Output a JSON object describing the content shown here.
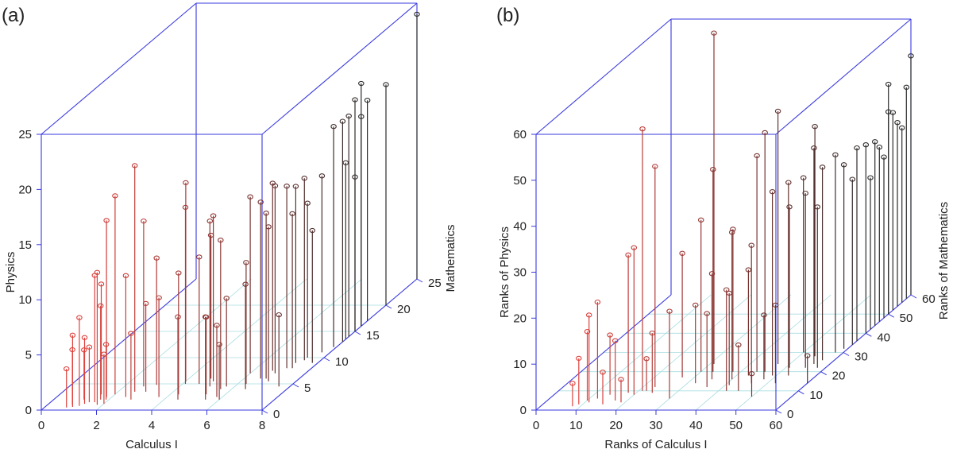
{
  "colors": {
    "box": "#3a3adf",
    "grid": "#a8dde0",
    "low": "#e0413c",
    "high": "#2b2b2b",
    "text": "#222222"
  },
  "chart_data": [
    {
      "type": "scatter",
      "panel_label": "(a)",
      "xlabel": "Calculus I",
      "ylabel": "Mathematics",
      "zlabel": "Physics",
      "xlim": [
        0,
        8
      ],
      "ylim": [
        0,
        25
      ],
      "zlim": [
        0,
        25
      ],
      "x_ticks": [
        "0",
        "2",
        "4",
        "6",
        "8"
      ],
      "y_ticks": [
        "0",
        "5",
        "10",
        "15",
        "20",
        "25"
      ],
      "z_ticks": [
        "0",
        "5",
        "10",
        "15",
        "20",
        "25"
      ],
      "points": [
        [
          0.8,
          0.5,
          3.5
        ],
        [
          0.9,
          1.0,
          5.0
        ],
        [
          1.0,
          0.6,
          6.5
        ],
        [
          1.1,
          2.0,
          4.5
        ],
        [
          1.2,
          0.8,
          8.0
        ],
        [
          1.3,
          1.2,
          6.0
        ],
        [
          1.4,
          1.5,
          5.0
        ],
        [
          1.5,
          3.0,
          10.0
        ],
        [
          1.6,
          1.5,
          11.5
        ],
        [
          1.7,
          2.0,
          8.5
        ],
        [
          1.8,
          1.0,
          12.0
        ],
        [
          1.8,
          2.5,
          16.0
        ],
        [
          1.9,
          2.0,
          5.0
        ],
        [
          2.0,
          1.2,
          4.5
        ],
        [
          2.0,
          3.0,
          18.0
        ],
        [
          2.5,
          2.5,
          11.0
        ],
        [
          2.6,
          3.5,
          20.5
        ],
        [
          2.7,
          4.5,
          15.0
        ],
        [
          2.8,
          2.0,
          6.0
        ],
        [
          3.0,
          3.5,
          8.0
        ],
        [
          3.1,
          4.8,
          11.5
        ],
        [
          3.7,
          2.5,
          9.0
        ],
        [
          4.0,
          5.5,
          18.0
        ],
        [
          4.1,
          5.0,
          16.0
        ],
        [
          4.3,
          3.0,
          11.0
        ],
        [
          4.5,
          2.0,
          7.5
        ],
        [
          4.6,
          5.0,
          11.5
        ],
        [
          4.8,
          6.0,
          13.0
        ],
        [
          5.0,
          5.5,
          15.0
        ],
        [
          5.1,
          4.5,
          15.0
        ],
        [
          5.3,
          3.0,
          7.0
        ],
        [
          5.5,
          2.0,
          7.5
        ],
        [
          5.6,
          4.0,
          13.5
        ],
        [
          5.7,
          4.5,
          8.0
        ],
        [
          5.8,
          2.5,
          6.5
        ],
        [
          6.0,
          2.0,
          5.0
        ],
        [
          6.0,
          7.0,
          16.0
        ],
        [
          6.3,
          5.0,
          11.0
        ],
        [
          6.5,
          4.0,
          9.5
        ],
        [
          6.6,
          6.0,
          16.0
        ],
        [
          6.7,
          7.5,
          17.0
        ],
        [
          6.8,
          6.0,
          15.0
        ],
        [
          6.9,
          7.0,
          17.0
        ],
        [
          7.0,
          5.5,
          14.0
        ],
        [
          7.1,
          8.0,
          16.5
        ],
        [
          7.2,
          9.0,
          16.0
        ],
        [
          7.3,
          8.0,
          14.0
        ],
        [
          7.4,
          9.5,
          16.5
        ],
        [
          7.4,
          10.0,
          14.0
        ],
        [
          7.6,
          4.5,
          6.5
        ],
        [
          7.7,
          11.0,
          16.0
        ],
        [
          7.8,
          9.0,
          12.0
        ],
        [
          7.9,
          12.0,
          20.0
        ],
        [
          8.0,
          13.0,
          20.0
        ],
        [
          8.0,
          14.0,
          20.0
        ],
        [
          8.0,
          15.0,
          21.0
        ],
        [
          8.0,
          16.0,
          22.0
        ],
        [
          8.0,
          16.0,
          19.0
        ],
        [
          8.0,
          17.0,
          20.0
        ],
        [
          8.0,
          13.5,
          16.0
        ],
        [
          8.0,
          15.0,
          14.0
        ],
        [
          8.0,
          20.0,
          20.0
        ],
        [
          8.0,
          25.0,
          24.0
        ]
      ]
    },
    {
      "type": "scatter",
      "panel_label": "(b)",
      "xlabel": "Ranks of Calculus I",
      "ylabel": "Ranks of Mathematics",
      "zlabel": "Ranks of Physics",
      "xlim": [
        0,
        60
      ],
      "ylim": [
        0,
        60
      ],
      "zlim": [
        0,
        60
      ],
      "x_ticks": [
        "0",
        "10",
        "20",
        "30",
        "40",
        "50",
        "60"
      ],
      "y_ticks": [
        "0",
        "10",
        "20",
        "30",
        "40",
        "50",
        "60"
      ],
      "z_ticks": [
        "0",
        "10",
        "20",
        "30",
        "40",
        "50",
        "60"
      ],
      "points": [
        [
          8,
          2,
          5
        ],
        [
          9,
          3,
          10
        ],
        [
          10,
          5,
          15
        ],
        [
          11,
          4,
          19
        ],
        [
          12,
          6,
          21
        ],
        [
          14,
          8,
          13
        ],
        [
          15,
          3,
          7
        ],
        [
          17,
          5,
          13
        ],
        [
          18,
          9,
          30
        ],
        [
          19,
          4,
          5
        ],
        [
          20,
          8,
          32
        ],
        [
          21,
          10,
          57
        ],
        [
          22,
          10,
          7
        ],
        [
          23,
          12,
          48
        ],
        [
          24,
          9,
          13
        ],
        [
          27,
          17,
          27
        ],
        [
          30,
          6,
          19
        ],
        [
          30,
          20,
          33
        ],
        [
          31,
          24,
          72
        ],
        [
          32,
          14,
          17
        ],
        [
          33,
          20,
          44
        ],
        [
          35,
          16,
          23
        ],
        [
          36,
          12,
          16
        ],
        [
          38,
          20,
          31
        ],
        [
          40,
          16,
          32
        ],
        [
          41,
          13,
          20
        ],
        [
          42,
          10,
          22
        ],
        [
          43,
          18,
          23
        ],
        [
          44,
          20,
          47
        ],
        [
          45,
          10,
          10
        ],
        [
          46,
          14,
          30
        ],
        [
          46,
          20,
          52
        ],
        [
          47,
          24,
          55
        ],
        [
          48,
          16,
          14
        ],
        [
          49,
          18,
          40
        ],
        [
          50,
          7,
          5
        ],
        [
          50,
          30,
          38
        ],
        [
          51,
          22,
          35
        ],
        [
          52,
          14,
          17
        ],
        [
          53,
          18,
          42
        ],
        [
          54,
          28,
          50
        ],
        [
          55,
          22,
          38
        ],
        [
          56,
          24,
          47
        ],
        [
          57,
          26,
          42
        ],
        [
          58,
          22,
          35
        ],
        [
          58,
          30,
          43
        ],
        [
          59,
          32,
          40
        ],
        [
          60,
          36,
          42
        ],
        [
          60,
          34,
          36
        ],
        [
          60,
          40,
          41
        ],
        [
          60,
          44,
          40
        ],
        [
          60,
          46,
          38
        ],
        [
          60,
          14,
          6
        ],
        [
          60,
          48,
          35
        ],
        [
          60,
          50,
          50
        ],
        [
          60,
          52,
          43
        ],
        [
          60,
          54,
          40
        ],
        [
          60,
          56,
          38
        ],
        [
          60,
          60,
          52
        ],
        [
          60,
          58,
          46
        ],
        [
          60,
          50,
          44
        ],
        [
          60,
          42,
          33
        ]
      ]
    }
  ]
}
